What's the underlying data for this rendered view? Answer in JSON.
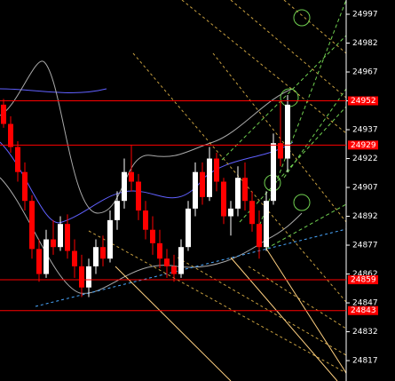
{
  "chart_data": {
    "type": "candlestick",
    "ylim": [
      24806.4,
      25004.4
    ],
    "yticks": [
      24997,
      24982,
      24967,
      24952,
      24937,
      24922,
      24907,
      24892,
      24877,
      24862,
      24847,
      24832,
      24817
    ],
    "open": [
      24950,
      24940,
      24928,
      24915,
      24900,
      24875,
      24862,
      24880,
      24876,
      24888,
      24874,
      24866,
      24855,
      24866,
      24876,
      24870,
      24890,
      24900,
      24915,
      24910,
      24895,
      24885,
      24878,
      24870,
      24866,
      24862,
      24876,
      24896,
      24915,
      24902,
      24922,
      24910,
      24892,
      24896,
      24912,
      24900,
      24888,
      24876,
      24900,
      24930,
      24922
    ],
    "high": [
      24953,
      24944,
      24931,
      24920,
      24903,
      24880,
      24885,
      24890,
      24892,
      24893,
      24880,
      24872,
      24870,
      24880,
      24882,
      24895,
      24905,
      24922,
      24929,
      24914,
      24900,
      24892,
      24885,
      24875,
      24872,
      24880,
      24900,
      24920,
      24920,
      24928,
      24925,
      24912,
      24900,
      24918,
      24920,
      24905,
      24895,
      24905,
      24935,
      24952,
      24955
    ],
    "low": [
      24938,
      24925,
      24910,
      24895,
      24870,
      24858,
      24860,
      24872,
      24874,
      24870,
      24860,
      24850,
      24850,
      24862,
      24866,
      24868,
      24885,
      24896,
      24905,
      24890,
      24880,
      24872,
      24865,
      24860,
      24858,
      24860,
      24874,
      24892,
      24898,
      24900,
      24905,
      24888,
      24882,
      24892,
      24895,
      24884,
      24870,
      24874,
      24898,
      24918,
      24915
    ],
    "close": [
      24940,
      24928,
      24915,
      24900,
      24875,
      24862,
      24880,
      24876,
      24888,
      24874,
      24866,
      24855,
      24866,
      24876,
      24870,
      24890,
      24900,
      24915,
      24910,
      24895,
      24885,
      24878,
      24870,
      24866,
      24862,
      24876,
      24896,
      24915,
      24902,
      24922,
      24910,
      24892,
      24896,
      24912,
      24900,
      24888,
      24876,
      24900,
      24930,
      24922,
      24950
    ],
    "up_color": "#ffffff",
    "down_color": "#ff0000",
    "levels": [
      24952,
      24929,
      24859,
      24843
    ],
    "level_color": "#ff0000"
  }
}
